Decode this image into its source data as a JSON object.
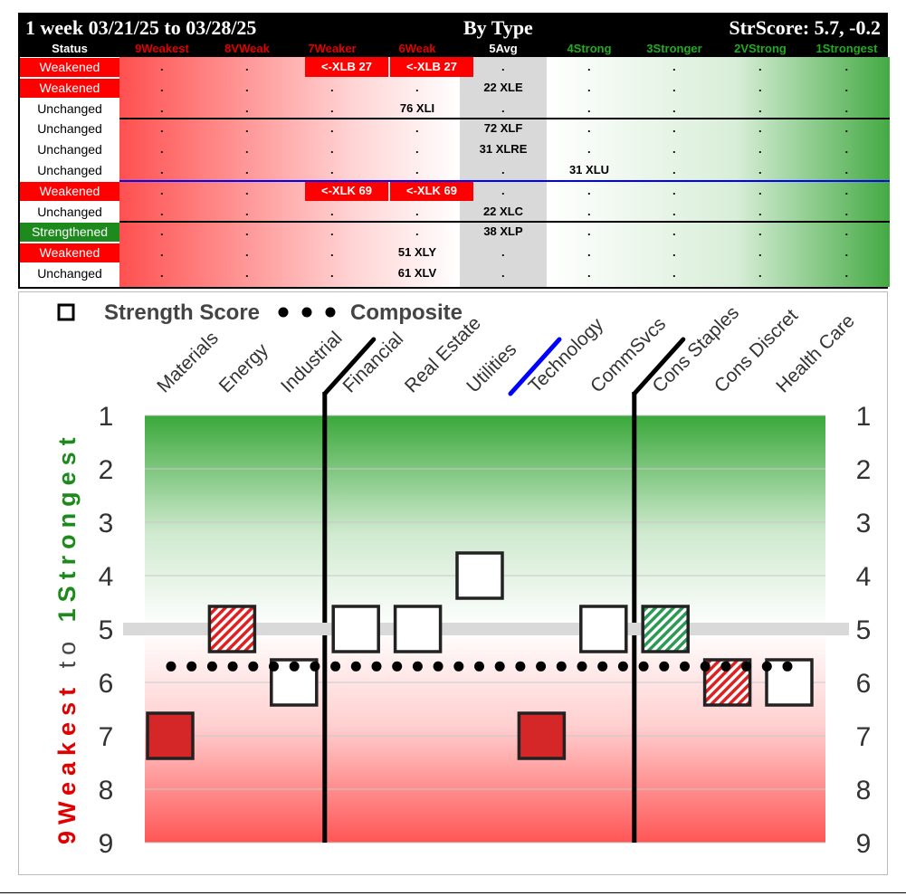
{
  "header": {
    "period": "1 week 03/21/25 to 03/28/25",
    "grouping": "By Type",
    "strscore": "StrScore: 5.7, -0.2"
  },
  "columns": [
    {
      "label": "Status",
      "color": "#ffffff"
    },
    {
      "label": "9Weakest",
      "color": "#e00000"
    },
    {
      "label": "8VWeak",
      "color": "#e00000"
    },
    {
      "label": "7Weaker",
      "color": "#e00000"
    },
    {
      "label": "6Weak",
      "color": "#e00000"
    },
    {
      "label": "5Avg",
      "color": "#ffffff"
    },
    {
      "label": "4Strong",
      "color": "#22aa22"
    },
    {
      "label": "3Stronger",
      "color": "#22aa22"
    },
    {
      "label": "2VStrong",
      "color": "#22aa22"
    },
    {
      "label": "1Strongest",
      "color": "#22aa22"
    }
  ],
  "rows": [
    {
      "status": "Weakened",
      "status_bg": "#ff0000",
      "status_fg": "#ffffff",
      "entries": [
        {
          "col": 3,
          "text": "<-XLB 27",
          "hl": true
        },
        {
          "col": 4,
          "text": "<-XLB 27",
          "hl": true
        }
      ]
    },
    {
      "status": "Weakened",
      "status_bg": "#ff0000",
      "status_fg": "#ffffff",
      "entries": [
        {
          "col": 5,
          "text": "22 XLE",
          "hl": false
        }
      ]
    },
    {
      "status": "Unchanged",
      "status_bg": "#ffffff",
      "status_fg": "#000000",
      "entries": [
        {
          "col": 4,
          "text": "76 XLI",
          "hl": false
        }
      ]
    },
    {
      "status": "Unchanged",
      "status_bg": "#ffffff",
      "status_fg": "#000000",
      "entries": [
        {
          "col": 5,
          "text": "72 XLF",
          "hl": false
        }
      ]
    },
    {
      "status": "Unchanged",
      "status_bg": "#ffffff",
      "status_fg": "#000000",
      "entries": [
        {
          "col": 5,
          "text": "31 XLRE",
          "hl": false
        }
      ]
    },
    {
      "status": "Unchanged",
      "status_bg": "#ffffff",
      "status_fg": "#000000",
      "entries": [
        {
          "col": 6,
          "text": "31 XLU",
          "hl": false
        }
      ]
    },
    {
      "status": "Weakened",
      "status_bg": "#ff0000",
      "status_fg": "#ffffff",
      "entries": [
        {
          "col": 3,
          "text": "<-XLK 69",
          "hl": true
        },
        {
          "col": 4,
          "text": "<-XLK 69",
          "hl": true
        }
      ]
    },
    {
      "status": "Unchanged",
      "status_bg": "#ffffff",
      "status_fg": "#000000",
      "entries": [
        {
          "col": 5,
          "text": "22 XLC",
          "hl": false
        }
      ]
    },
    {
      "status": "Strengthened",
      "status_bg": "#1e8a1e",
      "status_fg": "#ffffff",
      "entries": [
        {
          "col": 5,
          "text": "38 XLP",
          "hl": false
        }
      ]
    },
    {
      "status": "Weakened",
      "status_bg": "#ff0000",
      "status_fg": "#ffffff",
      "entries": [
        {
          "col": 4,
          "text": "51 XLY",
          "hl": false
        }
      ]
    },
    {
      "status": "Unchanged",
      "status_bg": "#ffffff",
      "status_fg": "#000000",
      "entries": [
        {
          "col": 4,
          "text": "61 XLV",
          "hl": false
        }
      ]
    }
  ],
  "dot_glyph": ".",
  "chart_data": {
    "type": "scatter",
    "categories": [
      "Materials",
      "Energy",
      "Industrial",
      "Financial",
      "Real Estate",
      "Utilities",
      "Technology",
      "CommSvcs",
      "Cons Staples",
      "Cons Discret",
      "Health Care"
    ],
    "series": [
      {
        "name": "Strength Score",
        "values": [
          7,
          5,
          6,
          5,
          5,
          4,
          7,
          5,
          5,
          6,
          6
        ],
        "fills": [
          "solid-red",
          "hatch-red",
          "open",
          "open",
          "open",
          "open",
          "solid-red",
          "open",
          "hatch-green",
          "hatch-red",
          "open"
        ]
      },
      {
        "name": "Composite",
        "values": [
          5.7,
          5.7,
          5.7,
          5.7,
          5.7,
          5.7,
          5.7,
          5.7,
          5.7,
          5.7,
          5.7
        ]
      }
    ],
    "yticks": [
      1,
      2,
      3,
      4,
      5,
      6,
      7,
      8,
      9
    ],
    "ylim": [
      1,
      9
    ],
    "y_inverted": true,
    "average_line": 5,
    "ylabel_weak": "9Weakest",
    "ylabel_to": "to",
    "ylabel_strong": "1Strongest",
    "legend": "top-left",
    "group_dividers": [
      {
        "after": "Industrial",
        "color": "#000000"
      },
      {
        "after": "Utilities",
        "color": "#0000ff"
      },
      {
        "after": "CommSvcs",
        "color": "#000000"
      }
    ]
  },
  "colors": {
    "red": "#ff0000",
    "green": "#1e8a1e",
    "marker_red": "#d62728",
    "avg_band": "#d9d9d9"
  }
}
